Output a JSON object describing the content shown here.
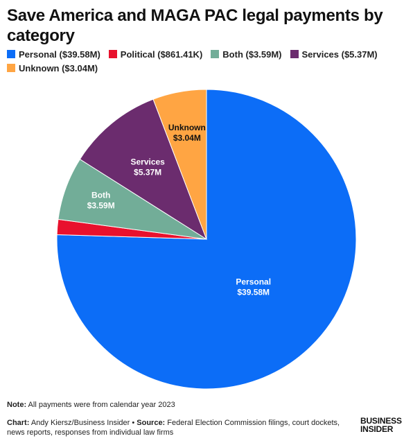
{
  "chart_data": {
    "type": "pie",
    "title": "Save America and MAGA PAC legal payments by category",
    "start_angle_deg": 0,
    "direction": "clockwise",
    "legend_position": "top-left",
    "slices": [
      {
        "name": "Personal",
        "value": 39.58,
        "value_label": "$39.58M",
        "legend_label": "Personal ($39.58M)",
        "color": "#0C6DF7"
      },
      {
        "name": "Political",
        "value": 0.86141,
        "value_label": "$861.41K",
        "legend_label": "Political ($861.41K)",
        "color": "#E8112D"
      },
      {
        "name": "Both",
        "value": 3.59,
        "value_label": "$3.59M",
        "legend_label": "Both ($3.59M)",
        "color": "#72AD98"
      },
      {
        "name": "Services",
        "value": 5.37,
        "value_label": "$5.37M",
        "legend_label": "Services ($5.37M)",
        "color": "#6B2C6E"
      },
      {
        "name": "Unknown",
        "value": 3.04,
        "value_label": "$3.04M",
        "legend_label": "Unknown ($3.04M)",
        "color": "#FFA543"
      }
    ],
    "data_labels_shown_for": [
      "Personal",
      "Both",
      "Services",
      "Unknown"
    ],
    "data_label_colors": {
      "Personal": "#ffffff",
      "Both": "#ffffff",
      "Services": "#ffffff",
      "Unknown": "#111111"
    }
  },
  "footer": {
    "note_label": "Note:",
    "note_text": " All payments were from calendar year 2023",
    "chart_label": "Chart:",
    "chart_text": " Andy Kiersz/Business Insider • ",
    "source_label": "Source:",
    "source_text": " Federal Election Commission filings, court dockets, news reports, responses from individual law firms"
  },
  "logo": {
    "line1": "BUSINESS",
    "line2": "INSIDER"
  }
}
